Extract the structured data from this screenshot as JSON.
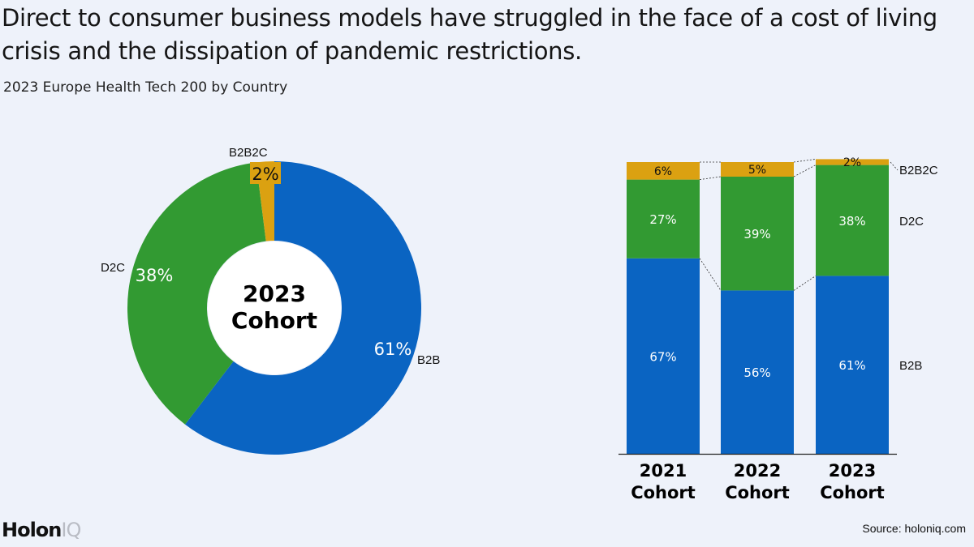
{
  "title": "Direct to consumer business models have struggled in the face of a cost of living crisis and the dissipation of pandemic restrictions.",
  "subtitle": "2023 Europe Health Tech 200 by Country",
  "brand": {
    "part1": "Holon",
    "part2": "IQ"
  },
  "source": "Source: holoniq.com",
  "colors": {
    "B2B": "#0a64c2",
    "D2C": "#329a32",
    "B2B2C": "#dba111"
  },
  "chart_data": [
    {
      "type": "pie",
      "style": "donut",
      "center_label": [
        "2023",
        "Cohort"
      ],
      "slices": [
        {
          "name": "B2B",
          "value": 61,
          "label": "61%"
        },
        {
          "name": "D2C",
          "value": 38,
          "label": "38%"
        },
        {
          "name": "B2B2C",
          "value": 2,
          "label": "2%"
        }
      ]
    },
    {
      "type": "bar",
      "stacked": true,
      "categories": [
        [
          "2021",
          "Cohort"
        ],
        [
          "2022",
          "Cohort"
        ],
        [
          "2023",
          "Cohort"
        ]
      ],
      "series": [
        {
          "name": "B2B",
          "values": [
            67,
            56,
            61
          ],
          "labels": [
            "67%",
            "56%",
            "61%"
          ]
        },
        {
          "name": "D2C",
          "values": [
            27,
            39,
            38
          ],
          "labels": [
            "27%",
            "39%",
            "38%"
          ]
        },
        {
          "name": "B2B2C",
          "values": [
            6,
            5,
            2
          ],
          "labels": [
            "6%",
            "5%",
            "2%"
          ]
        }
      ],
      "ylim": [
        0,
        100
      ],
      "legend": "right"
    }
  ]
}
